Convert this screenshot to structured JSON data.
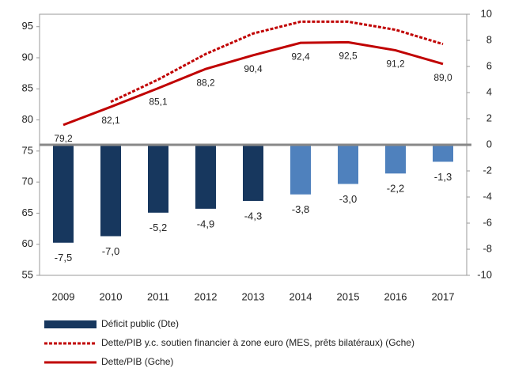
{
  "chart_data": {
    "type": "bar_line_dual",
    "categories": [
      "2009",
      "2010",
      "2011",
      "2012",
      "2013",
      "2014",
      "2015",
      "2016",
      "2017"
    ],
    "ylim": [
      55,
      97
    ],
    "yticks": [
      55,
      60,
      65,
      70,
      75,
      80,
      85,
      90,
      95
    ],
    "y2lim": [
      -10,
      10
    ],
    "y2ticks": [
      -10,
      -8,
      -6,
      -4,
      -2,
      0,
      2,
      4,
      6,
      8,
      10
    ],
    "series": [
      {
        "name": "Déficit public (Dte)",
        "type": "bar",
        "axis": "y2",
        "colors": [
          "#17375e",
          "#17375e",
          "#17375e",
          "#17375e",
          "#17375e",
          "#4f81bd",
          "#4f81bd",
          "#4f81bd",
          "#4f81bd"
        ],
        "values": [
          -7.5,
          -7.0,
          -5.2,
          -4.9,
          -4.3,
          -3.8,
          -3.0,
          -2.2,
          -1.3
        ],
        "value_labels": [
          "-7,5",
          "-7,0",
          "-5,2",
          "-4,9",
          "-4,3",
          "-3,8",
          "-3,0",
          "-2,2",
          "-1,3"
        ]
      },
      {
        "name": "Dette/PIB y.c. soutien financier à zone euro (MES, prêts bilatéraux) (Gche)",
        "type": "line",
        "dashed": true,
        "color": "#c00000",
        "values": [
          null,
          82.9,
          86.5,
          90.6,
          93.9,
          95.8,
          95.8,
          94.5,
          92.2
        ]
      },
      {
        "name": "Dette/PIB (Gche)",
        "type": "line",
        "color": "#c00000",
        "values": [
          79.2,
          82.1,
          85.1,
          88.2,
          90.4,
          92.4,
          92.5,
          91.2,
          89.0
        ],
        "value_labels": [
          "79,2",
          "82,1",
          "85,1",
          "88,2",
          "90,4",
          "92,4",
          "92,5",
          "91,2",
          "89,0"
        ]
      }
    ]
  }
}
